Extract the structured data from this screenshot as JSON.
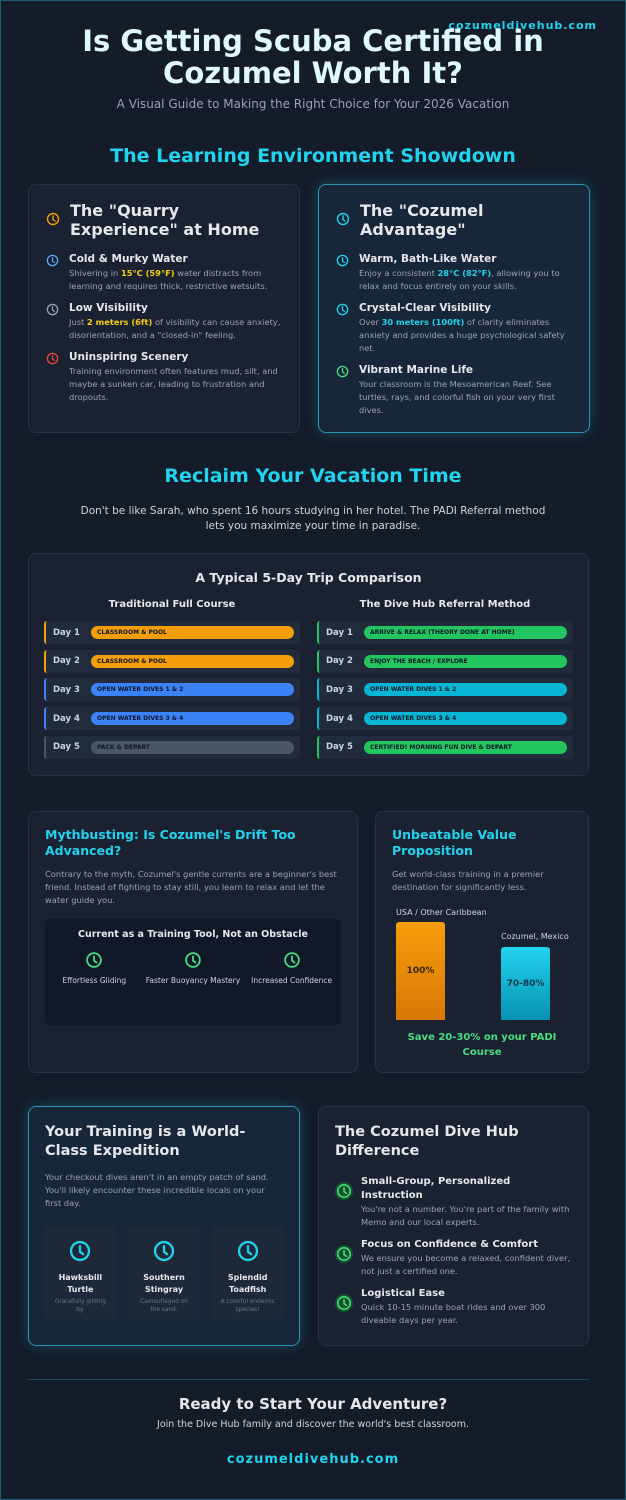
{
  "brand": "cozumeldivehub.com",
  "header": {
    "title": "Is Getting Scuba Certified in Cozumel Worth It?",
    "subtitle": "A Visual Guide to Making the Right Choice for Your 2026 Vacation"
  },
  "environment": {
    "title": "The Learning Environment Showdown",
    "home": {
      "title": "The \"Quarry Experience\" at Home",
      "items": [
        {
          "title": "Cold & Murky Water",
          "text": [
            "Shivering in ",
            "15°C (59°F)",
            " water distracts from learning and requires thick, restrictive wetsuits."
          ]
        },
        {
          "title": "Low Visibility",
          "text": [
            "Just ",
            "2 meters (6ft)",
            " of visibility can cause anxiety, disorientation, and a \"closed-in\" feeling."
          ]
        },
        {
          "title": "Uninspiring Scenery",
          "text": [
            "Training environment often features mud, silt, and maybe a sunken car, leading to frustration and dropouts."
          ]
        }
      ]
    },
    "cozumel": {
      "title": "The \"Cozumel Advantage\"",
      "items": [
        {
          "title": "Warm, Bath-Like Water",
          "text": [
            "Enjoy a consistent ",
            "28°C (82°F)",
            ", allowing you to relax and focus entirely on your skills."
          ]
        },
        {
          "title": "Crystal-Clear Visibility",
          "text": [
            "Over ",
            "30 meters (100ft)",
            " of clarity eliminates anxiety and provides a huge psychological safety net."
          ]
        },
        {
          "title": "Vibrant Marine Life",
          "text": [
            "Your classroom is the Mesoamerican Reef. See turtles, rays, and colorful fish on your very first dives."
          ]
        }
      ]
    }
  },
  "vacation": {
    "title": "Reclaim Your Vacation Time",
    "text": "Don't be like Sarah, who spent 16 hours studying in her hotel. The PADI Referral method lets you maximize your time in paradise."
  },
  "trip": {
    "title": "A Typical 5-Day Trip Comparison",
    "columns": [
      {
        "name": "Traditional Full Course",
        "days": [
          {
            "day": "Day 1",
            "activity": "CLASSROOM & POOL",
            "color": "#f59e0b"
          },
          {
            "day": "Day 2",
            "activity": "CLASSROOM & POOL",
            "color": "#f59e0b"
          },
          {
            "day": "Day 3",
            "activity": "OPEN WATER DIVES 1 & 2",
            "color": "#3b82f6"
          },
          {
            "day": "Day 4",
            "activity": "OPEN WATER DIVES 3 & 4",
            "color": "#3b82f6"
          },
          {
            "day": "Day 5",
            "activity": "PACK & DEPART",
            "color": "#4b5563"
          }
        ]
      },
      {
        "name": "The Dive Hub Referral Method",
        "days": [
          {
            "day": "Day 1",
            "activity": "ARRIVE & RELAX (THEORY DONE AT HOME)",
            "color": "#22c55e"
          },
          {
            "day": "Day 2",
            "activity": "ENJOY THE BEACH / EXPLORE",
            "color": "#22c55e"
          },
          {
            "day": "Day 3",
            "activity": "OPEN WATER DIVES 1 & 2",
            "color": "#06b6d4"
          },
          {
            "day": "Day 4",
            "activity": "OPEN WATER DIVES 3 & 4",
            "color": "#06b6d4"
          },
          {
            "day": "Day 5",
            "activity": "CERTIFIED! MORNING FUN DIVE & DEPART",
            "color": "#22c55e"
          }
        ]
      }
    ]
  },
  "drift": {
    "title": "Mythbusting: Is Cozumel's Drift Too Advanced?",
    "text": "Contrary to the myth, Cozumel's gentle currents are a beginner's best friend. Instead of fighting to stay still, you learn to relax and let the water guide you.",
    "box_title": "Current as a Training Tool, Not an Obstacle",
    "steps": [
      "Effortless Gliding",
      "Faster Buoyancy Mastery",
      "Increased Confidence"
    ]
  },
  "value": {
    "title": "Unbeatable Value Proposition",
    "text": "Get world-class training in a premier destination for significantly less.",
    "bars": [
      {
        "label": "USA / Other Caribbean",
        "value_label": "100%"
      },
      {
        "label": "Cozumel, Mexico",
        "value_label": "70-80%"
      }
    ],
    "saving": "Save 20-30% on your PADI Course"
  },
  "expedition": {
    "title": "Your Training is a World-Class Expedition",
    "text": "Your checkout dives aren't in an empty patch of sand. You'll likely encounter these incredible locals on your first day.",
    "creatures": [
      {
        "name": "Hawksbill Turtle",
        "note": "Gracefully gliding by."
      },
      {
        "name": "Southern Stingray",
        "note": "Camouflaged on the sand."
      },
      {
        "name": "Splendid Toadfish",
        "note": "A colorful endemic species!"
      }
    ]
  },
  "difference": {
    "title": "The Cozumel Dive Hub Difference",
    "items": [
      {
        "title": "Small-Group, Personalized Instruction",
        "text": "You're not a number. You're part of the family with Memo and our local experts."
      },
      {
        "title": "Focus on Confidence & Comfort",
        "text": "We ensure you become a relaxed, confident diver, not just a certified one."
      },
      {
        "title": "Logistical Ease",
        "text": "Quick 10-15 minute boat rides and over 300 diveable days per year."
      }
    ]
  },
  "cta": {
    "title": "Ready to Start Your Adventure?",
    "text": "Join the Dive Hub family and discover the world's best classroom.",
    "link": "cozumeldivehub.com"
  }
}
